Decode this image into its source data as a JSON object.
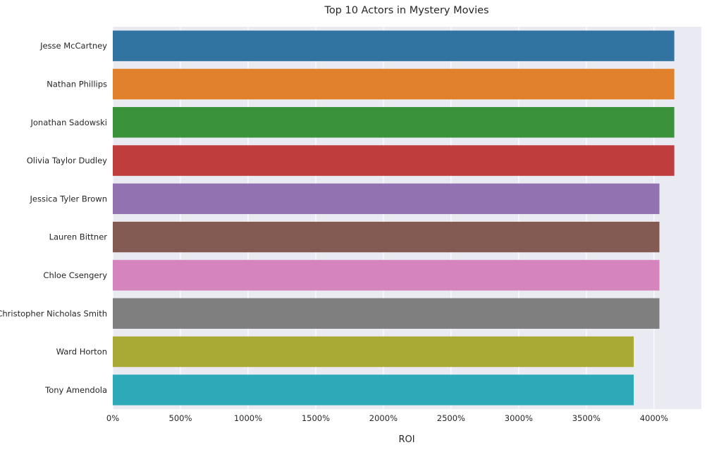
{
  "chart_data": {
    "type": "bar",
    "orientation": "horizontal",
    "title": "Top 10 Actors in Mystery Movies",
    "xlabel": "ROI",
    "ylabel": "",
    "xlim": [
      0,
      4350
    ],
    "xticks": [
      0,
      500,
      1000,
      1500,
      2000,
      2500,
      3000,
      3500,
      4000
    ],
    "xtick_labels": [
      "0%",
      "500%",
      "1000%",
      "1500%",
      "2000%",
      "2500%",
      "3000%",
      "3500%",
      "4000%"
    ],
    "categories": [
      "Jesse McCartney",
      "Nathan Phillips",
      "Jonathan Sadowski",
      "Olivia Taylor Dudley",
      "Jessica Tyler Brown",
      "Lauren Bittner",
      "Chloe Csengery",
      "Christopher Nicholas Smith",
      "Ward Horton",
      "Tony Amendola"
    ],
    "values": [
      4150,
      4150,
      4150,
      4150,
      4040,
      4040,
      4040,
      4040,
      3850,
      3850
    ],
    "colors": [
      "#3274a1",
      "#e1812c",
      "#3a923a",
      "#c03d3e",
      "#9372b2",
      "#845b53",
      "#d684bd",
      "#7f7f7f",
      "#a9aa35",
      "#2ea9b8"
    ],
    "background": "#eaeaf2",
    "grid": true,
    "legend": "none"
  }
}
